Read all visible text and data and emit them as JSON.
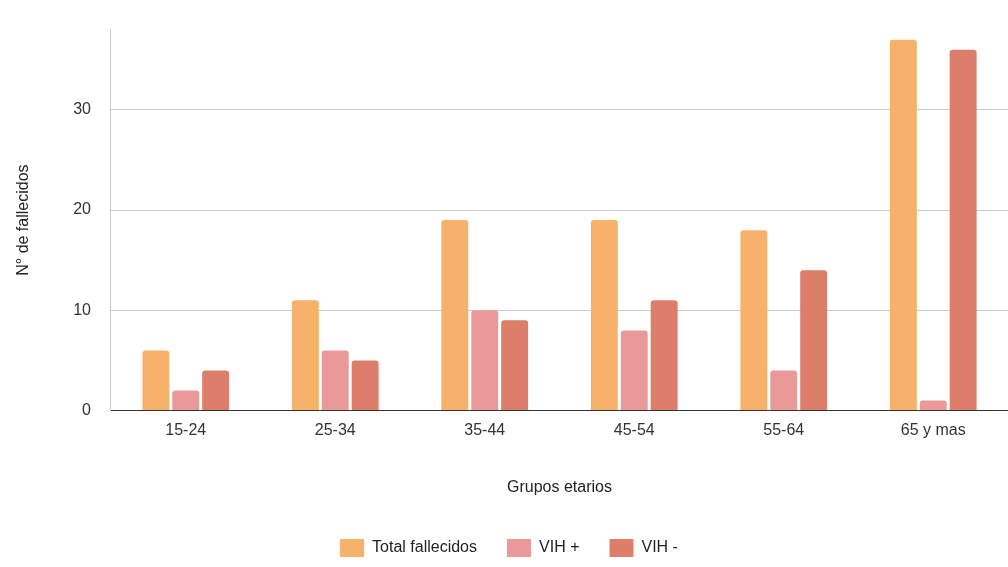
{
  "chart_data": {
    "type": "bar",
    "xlabel": "Grupos etarios",
    "ylabel": "N° de fallecidos",
    "categories": [
      "15-24",
      "25-34",
      "35-44",
      "45-54",
      "55-64",
      "65 y mas"
    ],
    "series": [
      {
        "name": "Total fallecidos",
        "color": "#f6b26b",
        "values": [
          6,
          11,
          19,
          19,
          18,
          37
        ]
      },
      {
        "name": "VIH +",
        "color": "#ea9999",
        "values": [
          2,
          6,
          10,
          8,
          4,
          1
        ]
      },
      {
        "name": "VIH -",
        "color": "#dd7e6b",
        "values": [
          4,
          5,
          9,
          11,
          14,
          36
        ]
      }
    ],
    "ylim": [
      0,
      38
    ],
    "yticks": [
      0,
      10,
      20,
      30
    ],
    "grid": "y",
    "legend": "bottom"
  }
}
